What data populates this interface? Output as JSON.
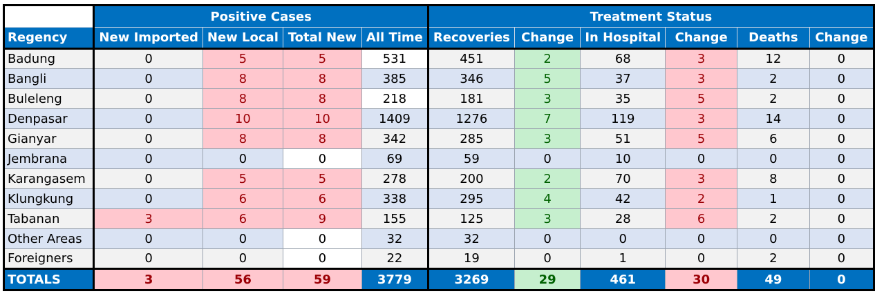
{
  "headers": {
    "group_positive": "Positive Cases",
    "group_treatment": "Treatment Status",
    "columns": [
      "Regency",
      "New Imported",
      "New Local",
      "Total New",
      "All Time",
      "Recoveries",
      "Change",
      "In Hospital",
      "Change",
      "Deaths",
      "Change"
    ]
  },
  "rows": [
    {
      "regency": "Badung",
      "values": [
        "0",
        "5",
        "5",
        "531",
        "451",
        "2",
        "68",
        "3",
        "12",
        "0"
      ]
    },
    {
      "regency": "Bangli",
      "values": [
        "0",
        "8",
        "8",
        "385",
        "346",
        "5",
        "37",
        "3",
        "2",
        "0"
      ]
    },
    {
      "regency": "Buleleng",
      "values": [
        "0",
        "8",
        "8",
        "218",
        "181",
        "3",
        "35",
        "5",
        "2",
        "0"
      ]
    },
    {
      "regency": "Denpasar",
      "values": [
        "0",
        "10",
        "10",
        "1409",
        "1276",
        "7",
        "119",
        "3",
        "14",
        "0"
      ]
    },
    {
      "regency": "Gianyar",
      "values": [
        "0",
        "8",
        "8",
        "342",
        "285",
        "3",
        "51",
        "5",
        "6",
        "0"
      ]
    },
    {
      "regency": "Jembrana",
      "values": [
        "0",
        "0",
        "0",
        "69",
        "59",
        "0",
        "10",
        "0",
        "0",
        "0"
      ]
    },
    {
      "regency": "Karangasem",
      "values": [
        "0",
        "5",
        "5",
        "278",
        "200",
        "2",
        "70",
        "3",
        "8",
        "0"
      ]
    },
    {
      "regency": "Klungkung",
      "values": [
        "0",
        "6",
        "6",
        "338",
        "295",
        "4",
        "42",
        "2",
        "1",
        "0"
      ]
    },
    {
      "regency": "Tabanan",
      "values": [
        "3",
        "6",
        "9",
        "155",
        "125",
        "3",
        "28",
        "6",
        "2",
        "0"
      ]
    },
    {
      "regency": "Other Areas",
      "values": [
        "0",
        "0",
        "0",
        "32",
        "32",
        "0",
        "0",
        "0",
        "0",
        "0"
      ]
    },
    {
      "regency": "Foreigners",
      "values": [
        "0",
        "0",
        "0",
        "22",
        "19",
        "0",
        "1",
        "0",
        "2",
        "0"
      ]
    }
  ],
  "totals": {
    "label": "TOTALS",
    "values": [
      "3",
      "56",
      "59",
      "3779",
      "3269",
      "29",
      "461",
      "30",
      "49",
      "0"
    ]
  },
  "highlight_colors": {
    "header_blue": "#0070c0",
    "red_fill": "#ffc7ce",
    "red_text": "#9c0006",
    "green_fill": "#c6efce",
    "green_text": "#006100",
    "row_light": "#f2f2f2",
    "row_dark": "#dae3f3"
  }
}
